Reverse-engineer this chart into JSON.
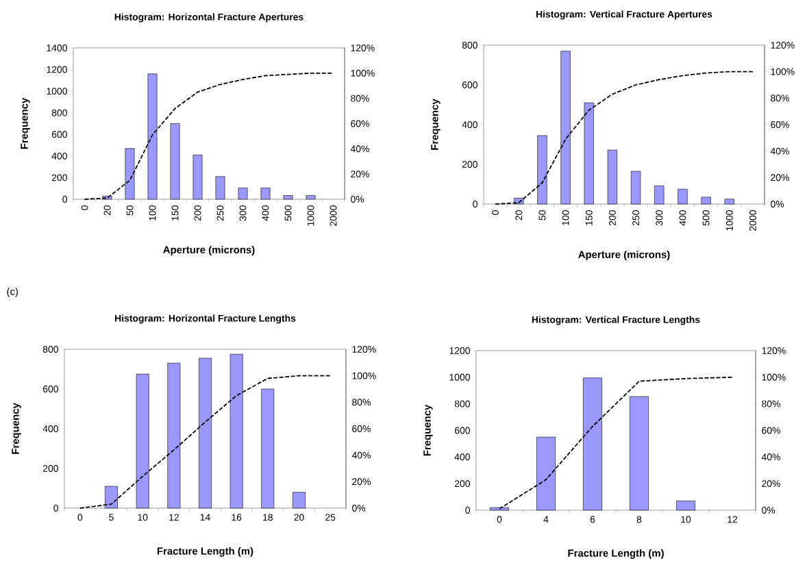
{
  "chart_data": [
    {
      "type": "bar",
      "title": "Histogram: Horizontal Fracture Apertures",
      "xlabel": "Aperture (microns)",
      "ylabel": "Frequency",
      "categories": [
        "0",
        "20",
        "50",
        "100",
        "150",
        "200",
        "250",
        "300",
        "400",
        "500",
        "1000",
        "2000"
      ],
      "ylim": [
        0,
        1400
      ],
      "yticks": [
        0,
        200,
        400,
        600,
        800,
        1000,
        1200,
        1400
      ],
      "y2lim": [
        0,
        120
      ],
      "y2ticks": [
        {
          "value": 0,
          "label": "0%"
        },
        {
          "value": 20,
          "label": "20%"
        },
        {
          "value": 40,
          "label": "40%"
        },
        {
          "value": 60,
          "label": "60%"
        },
        {
          "value": 80,
          "label": "80%"
        },
        {
          "value": 100,
          "label": "100%"
        },
        {
          "value": 120,
          "label": "120%"
        }
      ],
      "series": [
        {
          "type": "bar",
          "color": "#9999ff",
          "values": [
            null,
            30,
            470,
            1160,
            700,
            410,
            210,
            105,
            105,
            35,
            35,
            null
          ]
        },
        {
          "type": "line",
          "axis": "y2",
          "color": "#000000",
          "line_style": "dashed",
          "values": [
            0,
            1,
            15,
            51,
            72,
            85,
            91,
            95,
            98,
            99,
            100,
            100
          ]
        }
      ]
    },
    {
      "type": "bar",
      "title": "Histogram: Vertical Fracture Apertures",
      "xlabel": "Aperture (microns)",
      "ylabel": "Frequency",
      "categories": [
        "0",
        "20",
        "50",
        "100",
        "150",
        "200",
        "250",
        "300",
        "400",
        "500",
        "1000",
        "2000"
      ],
      "ylim": [
        0,
        800
      ],
      "yticks": [
        0,
        200,
        400,
        600,
        800
      ],
      "y2lim": [
        0,
        120
      ],
      "y2ticks": [
        {
          "value": 0,
          "label": "0%"
        },
        {
          "value": 20,
          "label": "20%"
        },
        {
          "value": 40,
          "label": "40%"
        },
        {
          "value": 60,
          "label": "60%"
        },
        {
          "value": 80,
          "label": "80%"
        },
        {
          "value": 100,
          "label": "100%"
        },
        {
          "value": 120,
          "label": "120%"
        }
      ],
      "series": [
        {
          "type": "bar",
          "color": "#9999ff",
          "values": [
            null,
            30,
            345,
            770,
            510,
            272,
            165,
            92,
            75,
            35,
            25,
            null
          ]
        },
        {
          "type": "line",
          "axis": "y2",
          "color": "#000000",
          "line_style": "dashed",
          "values": [
            0,
            1,
            16,
            49,
            71,
            83,
            90,
            94,
            97,
            99,
            100,
            100
          ]
        }
      ]
    },
    {
      "type": "bar",
      "title": "Histogram: Horizontal Fracture Lengths",
      "xlabel": "Fracture Length (m)",
      "ylabel": "Frequency",
      "annotations": [
        "(c)"
      ],
      "categories": [
        "0",
        "5",
        "10",
        "12",
        "14",
        "16",
        "18",
        "20",
        "25"
      ],
      "ylim": [
        0,
        800
      ],
      "yticks": [
        0,
        200,
        400,
        600,
        800
      ],
      "y2lim": [
        0,
        120
      ],
      "y2ticks": [
        {
          "value": 0,
          "label": "0%"
        },
        {
          "value": 20,
          "label": "20%"
        },
        {
          "value": 40,
          "label": "40%"
        },
        {
          "value": 60,
          "label": "60%"
        },
        {
          "value": 80,
          "label": "80%"
        },
        {
          "value": 100,
          "label": "100%"
        },
        {
          "value": 120,
          "label": "120%"
        }
      ],
      "series": [
        {
          "type": "bar",
          "color": "#9999ff",
          "values": [
            null,
            110,
            675,
            730,
            755,
            775,
            600,
            80,
            null
          ]
        },
        {
          "type": "line",
          "axis": "y2",
          "color": "#000000",
          "line_style": "dashed",
          "values": [
            0,
            3,
            24,
            44,
            65,
            85,
            98,
            100,
            100
          ]
        }
      ]
    },
    {
      "type": "bar",
      "title": "Histogram: Vertical Fracture Lengths",
      "xlabel": "Fracture Length (m)",
      "ylabel": "Frequency",
      "categories": [
        "0",
        "4",
        "6",
        "8",
        "10",
        "12"
      ],
      "ylim": [
        0,
        1200
      ],
      "yticks": [
        0,
        200,
        400,
        600,
        800,
        1000,
        1200
      ],
      "y2lim": [
        0,
        120
      ],
      "y2ticks": [
        {
          "value": 0,
          "label": "0%"
        },
        {
          "value": 20,
          "label": "20%"
        },
        {
          "value": 40,
          "label": "40%"
        },
        {
          "value": 60,
          "label": "60%"
        },
        {
          "value": 80,
          "label": "80%"
        },
        {
          "value": 100,
          "label": "100%"
        },
        {
          "value": 120,
          "label": "120%"
        }
      ],
      "series": [
        {
          "type": "bar",
          "color": "#9999ff",
          "values": [
            20,
            550,
            995,
            855,
            70,
            null
          ]
        },
        {
          "type": "line",
          "axis": "y2",
          "color": "#000000",
          "line_style": "dashed",
          "values": [
            1,
            23,
            63,
            97,
            99,
            100
          ]
        }
      ]
    }
  ]
}
